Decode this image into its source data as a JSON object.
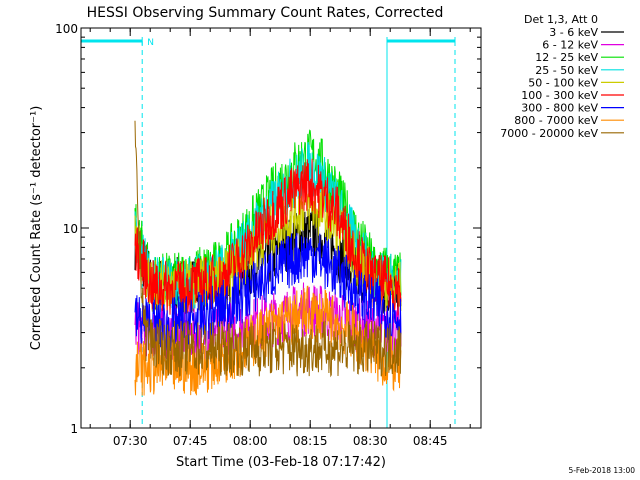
{
  "chart_data": {
    "type": "line",
    "title": "HESSI Observing Summary Count Rates, Corrected",
    "xlabel": "Start Time (03-Feb-18 07:17:42)",
    "ylabel": "Corrected Count Rate (s⁻¹ detector⁻¹)",
    "y_scale": "log",
    "ylim": [
      1,
      100
    ],
    "y_ticks": [
      {
        "value": 1,
        "label": "1"
      },
      {
        "value": 10,
        "label": "10"
      },
      {
        "value": 100,
        "label": "100"
      }
    ],
    "x_range_minutes": [
      0,
      100
    ],
    "x_ticks": [
      {
        "minutes": 12.3,
        "label": "07:30"
      },
      {
        "minutes": 27.3,
        "label": "07:45"
      },
      {
        "minutes": 42.3,
        "label": "08:00"
      },
      {
        "minutes": 57.3,
        "label": "08:15"
      },
      {
        "minutes": 72.3,
        "label": "08:30"
      },
      {
        "minutes": 87.3,
        "label": "08:45"
      }
    ],
    "legend_placement": "right",
    "legend_header": "Det 1,3, Att 0",
    "series": [
      {
        "name": "3 - 6 keV",
        "color": "#000000",
        "points": [
          [
            13.5,
            8.5
          ],
          [
            18,
            5.2
          ],
          [
            25,
            5.2
          ],
          [
            35,
            5.2
          ],
          [
            45,
            6.5
          ],
          [
            52,
            8.5
          ],
          [
            57,
            9.5
          ],
          [
            62,
            8.5
          ],
          [
            68,
            6
          ],
          [
            75,
            5
          ],
          [
            80,
            4.8
          ]
        ]
      },
      {
        "name": "6 - 12 keV",
        "color": "#e000e0",
        "points": [
          [
            13.5,
            3.2
          ],
          [
            20,
            3
          ],
          [
            30,
            3
          ],
          [
            40,
            3.2
          ],
          [
            48,
            3.5
          ],
          [
            57,
            4
          ],
          [
            65,
            3.5
          ],
          [
            75,
            3
          ],
          [
            80,
            3
          ]
        ]
      },
      {
        "name": "12 - 25 keV",
        "color": "#00e000",
        "points": [
          [
            13.5,
            10
          ],
          [
            18,
            5.5
          ],
          [
            25,
            5.5
          ],
          [
            35,
            6.5
          ],
          [
            42,
            10
          ],
          [
            48,
            15
          ],
          [
            53,
            20
          ],
          [
            57,
            23
          ],
          [
            60,
            21
          ],
          [
            64,
            15
          ],
          [
            68,
            10
          ],
          [
            73,
            6.5
          ],
          [
            80,
            5.5
          ]
        ]
      },
      {
        "name": "25 - 50 keV",
        "color": "#00e0e0",
        "points": [
          [
            13.5,
            9
          ],
          [
            18,
            5.2
          ],
          [
            25,
            5.2
          ],
          [
            35,
            6
          ],
          [
            42,
            9
          ],
          [
            48,
            13
          ],
          [
            53,
            17
          ],
          [
            57,
            20
          ],
          [
            60,
            18
          ],
          [
            64,
            13
          ],
          [
            68,
            9
          ],
          [
            73,
            6
          ],
          [
            80,
            5.2
          ]
        ]
      },
      {
        "name": "50 - 100 keV",
        "color": "#cccc00",
        "points": [
          [
            13.5,
            8.5
          ],
          [
            18,
            5
          ],
          [
            25,
            5
          ],
          [
            35,
            5.5
          ],
          [
            42,
            7.5
          ],
          [
            48,
            10
          ],
          [
            53,
            12
          ],
          [
            57,
            13
          ],
          [
            60,
            12
          ],
          [
            64,
            10
          ],
          [
            68,
            7.5
          ],
          [
            73,
            5.5
          ],
          [
            80,
            5
          ]
        ]
      },
      {
        "name": "100 - 300 keV",
        "color": "#ff0000",
        "points": [
          [
            13.5,
            8
          ],
          [
            18,
            5
          ],
          [
            25,
            5
          ],
          [
            35,
            5.5
          ],
          [
            42,
            8
          ],
          [
            48,
            12
          ],
          [
            53,
            15
          ],
          [
            57,
            17
          ],
          [
            60,
            15
          ],
          [
            64,
            12
          ],
          [
            68,
            8
          ],
          [
            73,
            5.5
          ],
          [
            80,
            5
          ]
        ]
      },
      {
        "name": "300 - 800 keV",
        "color": "#0000ff",
        "points": [
          [
            13.5,
            3.5
          ],
          [
            20,
            3.2
          ],
          [
            30,
            3.5
          ],
          [
            40,
            4.5
          ],
          [
            48,
            6
          ],
          [
            53,
            7
          ],
          [
            57,
            7.5
          ],
          [
            60,
            7
          ],
          [
            64,
            6
          ],
          [
            70,
            4.5
          ],
          [
            80,
            3.5
          ]
        ]
      },
      {
        "name": "800 - 7000 keV",
        "color": "#ff8c00",
        "points": [
          [
            13.5,
            2
          ],
          [
            20,
            2
          ],
          [
            30,
            2
          ],
          [
            40,
            2.5
          ],
          [
            48,
            3.2
          ],
          [
            53,
            3.5
          ],
          [
            57,
            3.8
          ],
          [
            62,
            3.5
          ],
          [
            68,
            3
          ],
          [
            75,
            2.2
          ],
          [
            80,
            2
          ]
        ]
      },
      {
        "name": "7000 - 20000 keV",
        "color": "#996600",
        "points": [
          [
            13.5,
            26
          ],
          [
            14.5,
            9
          ],
          [
            16,
            3
          ],
          [
            20,
            2.5
          ],
          [
            30,
            2.5
          ],
          [
            40,
            2.5
          ],
          [
            50,
            2.5
          ],
          [
            60,
            2.5
          ],
          [
            70,
            2.5
          ],
          [
            80,
            2.5
          ]
        ]
      }
    ],
    "night_intervals": [
      {
        "start": 0,
        "end": 15.3,
        "label": "N"
      },
      {
        "start": 76.5,
        "end": 93.5,
        "label": ""
      }
    ]
  },
  "footer": {
    "date_stamp": "5-Feb-2018 13:00"
  }
}
